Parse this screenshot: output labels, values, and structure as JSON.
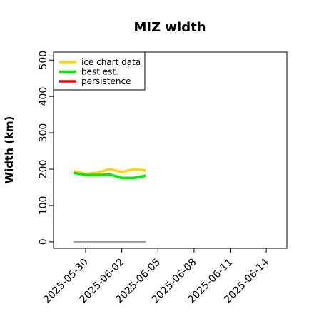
{
  "chart_data": {
    "type": "line",
    "title": "MIZ width",
    "y_label": "Width (km)",
    "x": [
      "2025-05-29",
      "2025-05-30",
      "2025-05-31",
      "2025-06-01",
      "2025-06-02",
      "2025-06-03",
      "2025-06-04"
    ],
    "series": [
      {
        "name": "ice chart data",
        "color": "#ffd700",
        "values": [
          195,
          187,
          190,
          200,
          192,
          200,
          196
        ]
      },
      {
        "name": "best est.",
        "color": "#00ee00",
        "values": [
          190,
          184,
          184,
          185,
          176,
          176,
          182
        ]
      },
      {
        "name": "persistence",
        "color": "#ff0000",
        "values": [
          null,
          null,
          null,
          null,
          null,
          null,
          null
        ]
      },
      {
        "color": "#888888",
        "values": [
          0,
          0,
          0,
          0,
          0,
          0,
          0
        ]
      }
    ],
    "xlim": [
      "2025-05-27T08:00:00Z",
      "2025-06-15T17:00:00Z"
    ],
    "xticks": [
      "2025-05-30",
      "2025-06-02",
      "2025-06-05",
      "2025-06-08",
      "2025-06-11",
      "2025-06-14"
    ],
    "ylim": [
      -18,
      522
    ],
    "yticks": [
      0,
      100,
      200,
      300,
      400,
      500
    ],
    "legend": "top-left",
    "grid": false
  }
}
